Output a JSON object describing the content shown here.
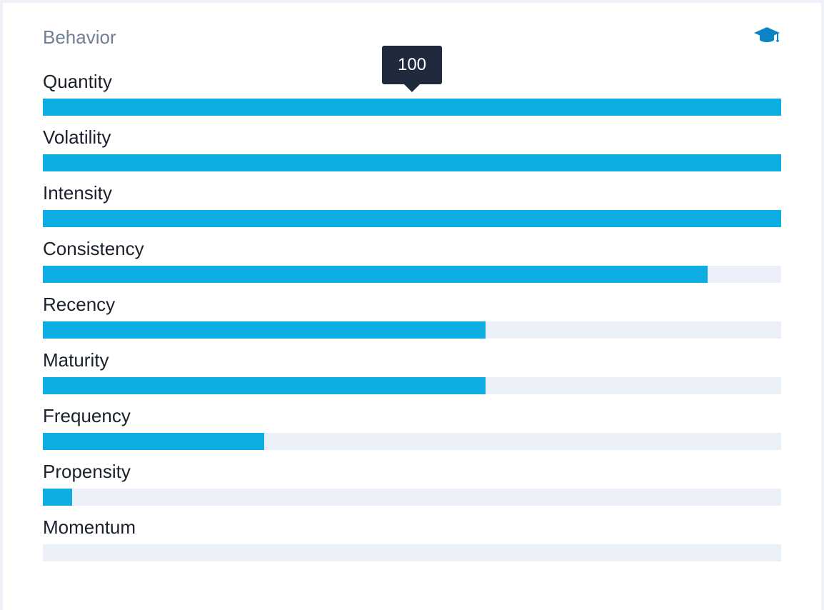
{
  "card": {
    "title": "Behavior",
    "icon": "graduation-cap-icon",
    "accent_color": "#0eade1",
    "track_color": "#ebeff7",
    "title_color": "#718096"
  },
  "tooltip": {
    "value": "100"
  },
  "metrics": [
    {
      "label": "Quantity",
      "value": 100
    },
    {
      "label": "Volatility",
      "value": 100
    },
    {
      "label": "Intensity",
      "value": 100
    },
    {
      "label": "Consistency",
      "value": 90
    },
    {
      "label": "Recency",
      "value": 60
    },
    {
      "label": "Maturity",
      "value": 60
    },
    {
      "label": "Frequency",
      "value": 30
    },
    {
      "label": "Propensity",
      "value": 4
    },
    {
      "label": "Momentum",
      "value": 0
    }
  ]
}
